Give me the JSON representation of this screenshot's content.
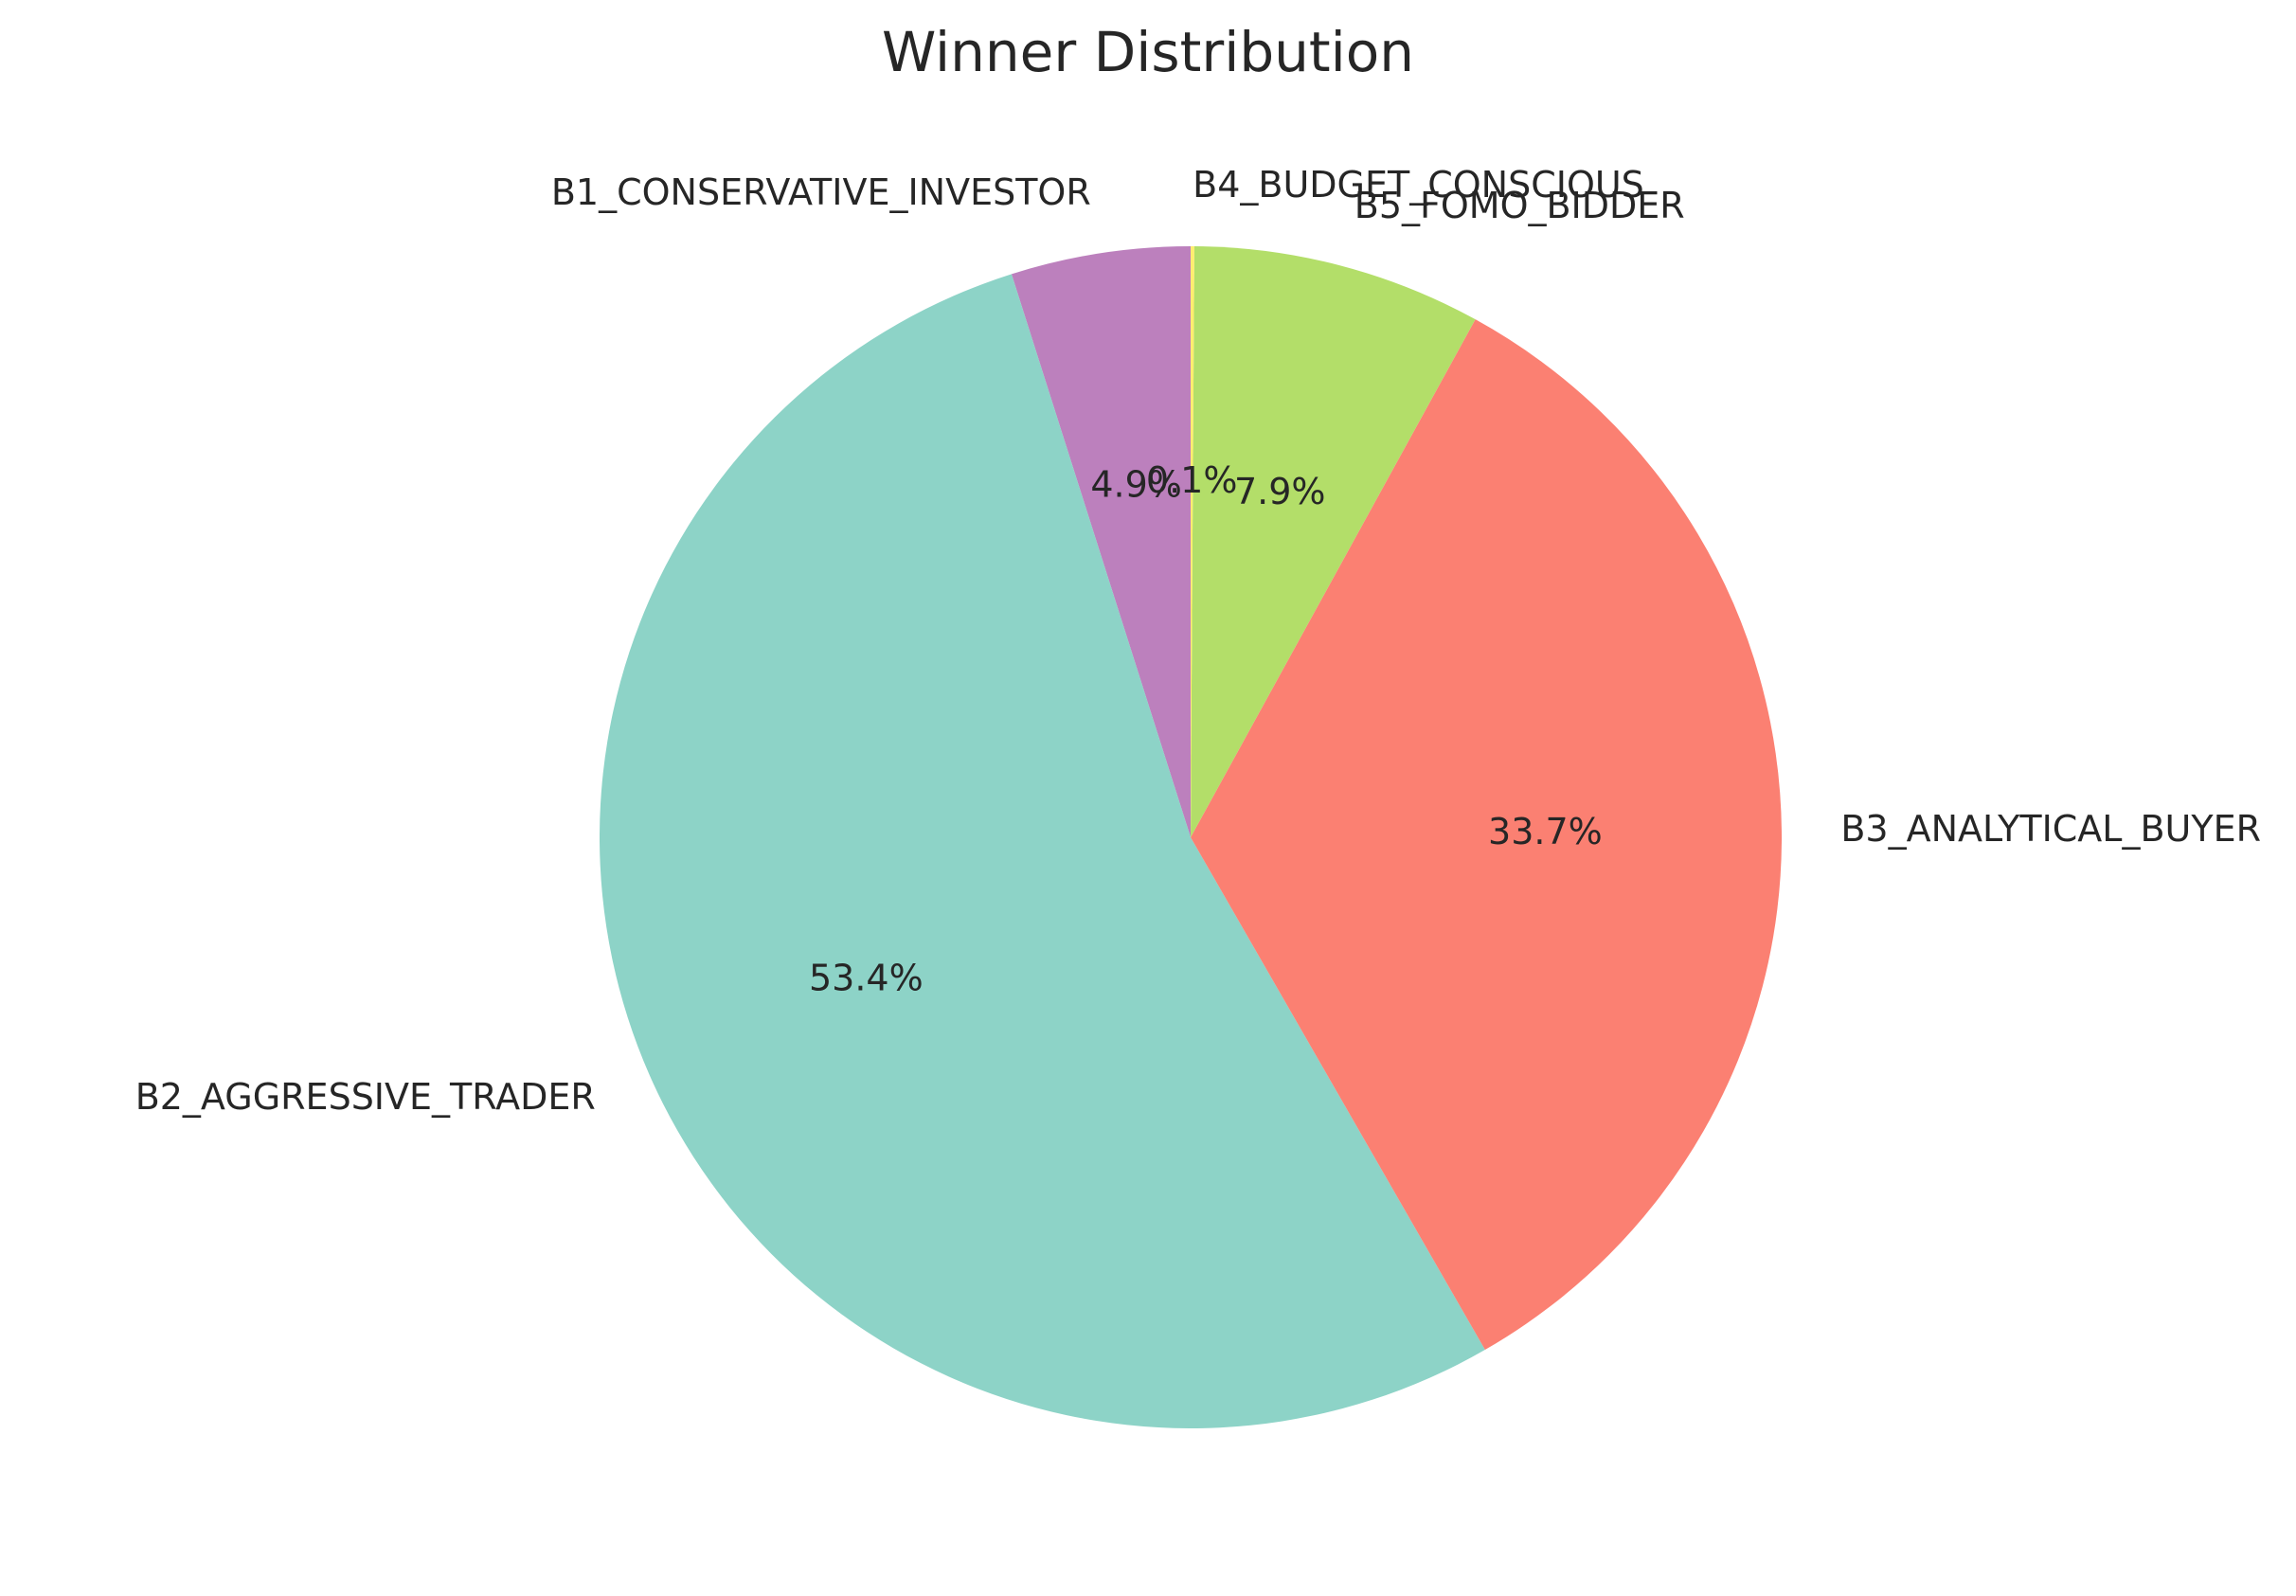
{
  "chart_data": {
    "type": "pie",
    "title": "Winner Distribution",
    "start_angle_deg": 90,
    "direction": "counterclockwise",
    "slices": [
      {
        "label": "B1_CONSERVATIVE_INVESTOR",
        "value": 4.9,
        "pct_label": "4.9%",
        "color": "#bc80bd"
      },
      {
        "label": "B2_AGGRESSIVE_TRADER",
        "value": 53.4,
        "pct_label": "53.4%",
        "color": "#8dd3c7"
      },
      {
        "label": "B3_ANALYTICAL_BUYER",
        "value": 33.7,
        "pct_label": "33.7%",
        "color": "#fb8072"
      },
      {
        "label": "B5_FOMO_BIDDER",
        "value": 7.9,
        "pct_label": "7.9%",
        "color": "#b3de69"
      },
      {
        "label": "B4_BUDGET_CONSCIOUS",
        "value": 0.1,
        "pct_label": "0.1%",
        "color": "#ffed6f"
      }
    ]
  }
}
